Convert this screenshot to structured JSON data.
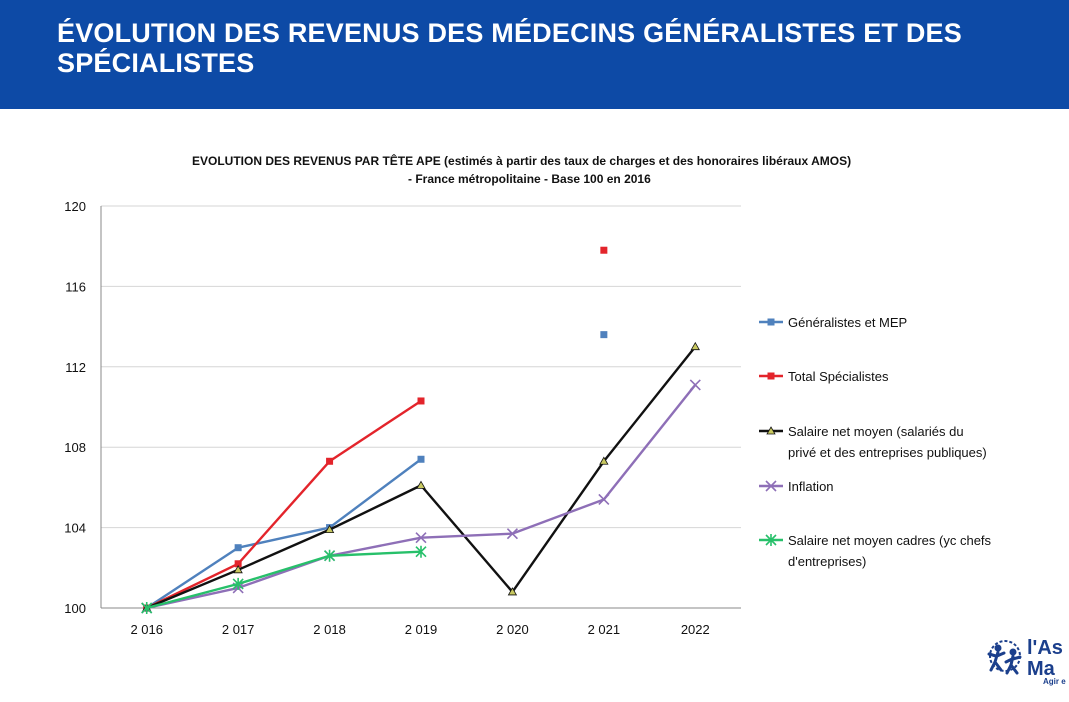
{
  "header": {
    "title": "ÉVOLUTION DES REVENUS DES MÉDECINS GÉNÉRALISTES ET DES SPÉCIALISTES"
  },
  "chart_data": {
    "type": "line",
    "title": "EVOLUTION DES REVENUS PAR TÊTE APE (estimés à partir des taux de charges et des honoraires libéraux AMOS)",
    "subtitle": "- France métropolitaine - Base 100 en 2016",
    "categories": [
      "2 016",
      "2 017",
      "2 018",
      "2 019",
      "2 020",
      "2 021",
      "2022"
    ],
    "yticks": [
      "100",
      "104",
      "108",
      "112",
      "116",
      "120"
    ],
    "ylim": [
      100,
      120
    ],
    "grid": "horizontal",
    "legend_position": "right",
    "series": [
      {
        "name": "Généralistes et MEP",
        "color": "#4f81bd",
        "marker": "square",
        "values": [
          100,
          103.0,
          104.0,
          107.4,
          null,
          113.6,
          null
        ]
      },
      {
        "name": "Total Spécialistes",
        "color": "#e3242b",
        "marker": "square",
        "values": [
          100,
          102.2,
          107.3,
          110.3,
          null,
          117.8,
          null
        ]
      },
      {
        "name": "Salaire net moyen (salariés du privé et des entreprises publiques)",
        "color": "#111111",
        "marker": "triangle",
        "values": [
          100,
          101.9,
          103.9,
          106.1,
          100.8,
          107.3,
          113.0
        ]
      },
      {
        "name": "Inflation",
        "color": "#8e6fb7",
        "marker": "x",
        "values": [
          100,
          101.0,
          102.6,
          103.5,
          103.7,
          105.4,
          111.1
        ]
      },
      {
        "name": "Salaire net moyen cadres (yc chefs d'entreprises)",
        "color": "#27c06a",
        "marker": "star",
        "values": [
          100,
          101.2,
          102.6,
          102.8,
          null,
          null,
          null
        ]
      }
    ]
  },
  "logo": {
    "text_top": "l'As",
    "text_bottom": "Ma",
    "tagline": "Agir e"
  }
}
